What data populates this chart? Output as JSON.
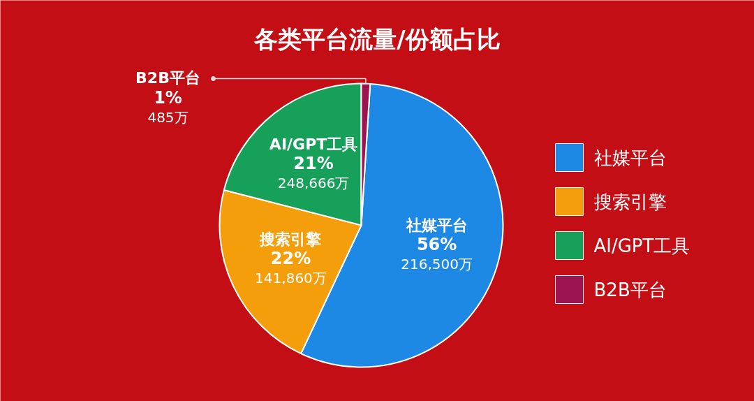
{
  "chart_data": {
    "type": "pie",
    "title": "各类平台流量/份额占比",
    "categories": [
      "社媒平台",
      "搜索引擎",
      "AI/GPT工具",
      "B2B平台"
    ],
    "values": [
      56,
      22,
      21,
      1
    ],
    "colors": [
      "#1e88e5",
      "#f59e0b",
      "#16a05a",
      "#9c1450"
    ],
    "value_labels": [
      "56%",
      "22%",
      "21%",
      "1%"
    ],
    "annotations": [
      "216,500万",
      "141,860万",
      "248,666万",
      "485万"
    ],
    "legend": "right"
  }
}
